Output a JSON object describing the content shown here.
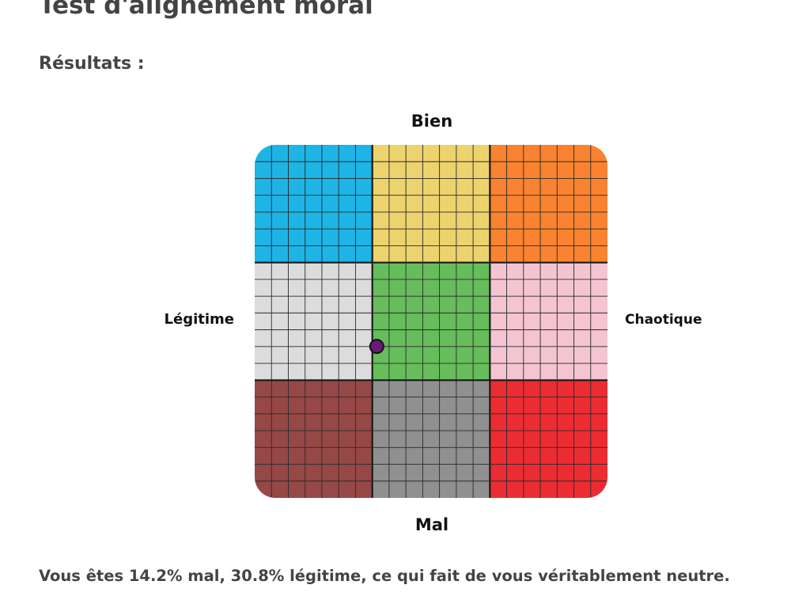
{
  "page": {
    "title": "Test d'alignement moral",
    "results_heading": "Résultats :",
    "summary": "Vous êtes 14.2% mal, 30.8% légitime, ce qui fait de vous véritablement neutre."
  },
  "chart_data": {
    "type": "scatter",
    "title": "",
    "axis_labels": {
      "top": "Bien",
      "bottom": "Mal",
      "left": "Légitime",
      "right": "Chaotique"
    },
    "xlim": [
      -1,
      1
    ],
    "ylim": [
      -1,
      1
    ],
    "grid": true,
    "cells": [
      {
        "row": 0,
        "col": 0,
        "color": "#1eb4e6"
      },
      {
        "row": 0,
        "col": 1,
        "color": "#ecd36e"
      },
      {
        "row": 0,
        "col": 2,
        "color": "#f98330"
      },
      {
        "row": 1,
        "col": 0,
        "color": "#dcdcdc"
      },
      {
        "row": 1,
        "col": 1,
        "color": "#66bd5b"
      },
      {
        "row": 1,
        "col": 2,
        "color": "#f4c4d2"
      },
      {
        "row": 2,
        "col": 0,
        "color": "#964846"
      },
      {
        "row": 2,
        "col": 1,
        "color": "#909090"
      },
      {
        "row": 2,
        "col": 2,
        "color": "#eb2c33"
      }
    ],
    "points": [
      {
        "x": -0.308,
        "y": -0.142,
        "color": "#6a1a78"
      }
    ]
  }
}
